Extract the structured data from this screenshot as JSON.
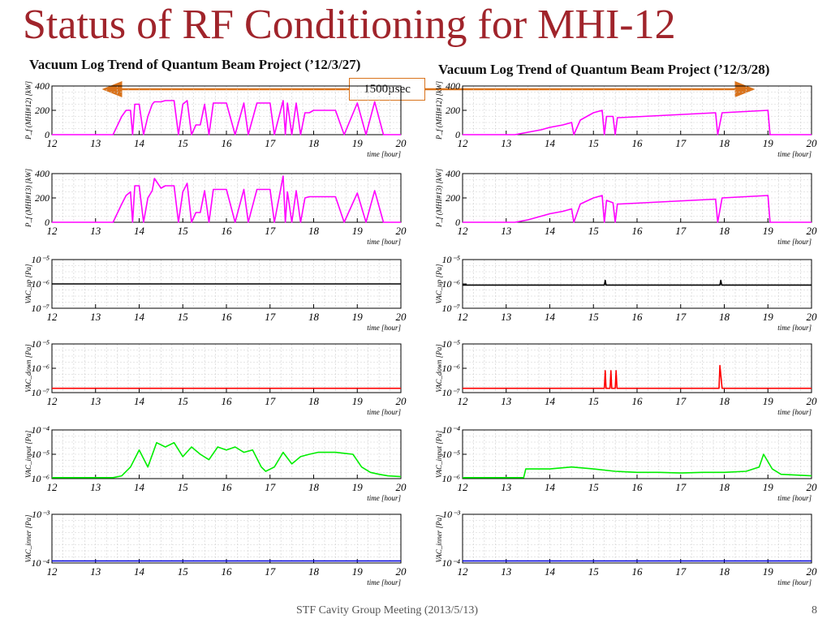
{
  "slide": {
    "title": "Status of RF Conditioning for MHI-12",
    "left_title": "Vacuum Log Trend of Quantum Beam Project (’12/3/27)",
    "right_title": "Vacuum Log Trend of Quantum Beam Project (’12/3/28)",
    "annotation": "1500µsec",
    "footer": "STF Cavity Group Meeting (2013/5/13)",
    "page_number": "8",
    "arrow_color": "#d9731c"
  },
  "chart_data": [
    {
      "type": "line",
      "column": "left",
      "row": 0,
      "ylabel": "P_f (MHI#12) [kW]",
      "xlabel": "time [hour]",
      "xlim": [
        12,
        20
      ],
      "ylim": [
        0,
        400
      ],
      "y_scale": "linear",
      "yticks": [
        {
          "value": 0,
          "label": "0"
        },
        {
          "value": 200,
          "label": "200"
        },
        {
          "value": 400,
          "label": "400"
        }
      ],
      "xticks": [
        "12",
        "13",
        "14",
        "15",
        "16",
        "17",
        "18",
        "19",
        "20"
      ],
      "grid": true,
      "color": "#ff00ff",
      "series": [
        {
          "x": [
            12,
            13.4,
            13.6,
            13.7,
            13.8,
            13.85,
            13.9,
            14.0,
            14.1,
            14.2,
            14.3,
            14.35,
            14.5,
            14.6,
            14.8,
            14.9,
            15.0,
            15.1,
            15.2,
            15.3,
            15.4,
            15.5,
            15.6,
            15.7,
            15.8,
            16.0,
            16.2,
            16.4,
            16.5,
            16.7,
            16.9,
            17.0,
            17.1,
            17.3,
            17.35,
            17.4,
            17.5,
            17.6,
            17.7,
            17.8,
            17.9,
            18.0,
            18.5,
            18.7,
            19.0,
            19.2,
            19.4,
            19.6,
            20
          ],
          "y": [
            0,
            0,
            150,
            200,
            200,
            0,
            250,
            250,
            0,
            150,
            250,
            270,
            270,
            280,
            280,
            0,
            250,
            280,
            0,
            80,
            80,
            250,
            0,
            260,
            260,
            260,
            0,
            260,
            0,
            260,
            260,
            260,
            0,
            280,
            0,
            260,
            0,
            260,
            0,
            180,
            180,
            200,
            200,
            0,
            260,
            0,
            270,
            0,
            0
          ]
        }
      ]
    },
    {
      "type": "line",
      "column": "left",
      "row": 1,
      "ylabel": "P_f (MHI#13) [kW]",
      "xlabel": "time [hour]",
      "xlim": [
        12,
        20
      ],
      "ylim": [
        0,
        400
      ],
      "y_scale": "linear",
      "yticks": [
        {
          "value": 0,
          "label": "0"
        },
        {
          "value": 200,
          "label": "200"
        },
        {
          "value": 400,
          "label": "400"
        }
      ],
      "xticks": [
        "12",
        "13",
        "14",
        "15",
        "16",
        "17",
        "18",
        "19",
        "20"
      ],
      "grid": true,
      "color": "#ff00ff",
      "series": [
        {
          "x": [
            12,
            13.4,
            13.6,
            13.7,
            13.8,
            13.85,
            13.9,
            14.0,
            14.1,
            14.2,
            14.3,
            14.35,
            14.5,
            14.6,
            14.8,
            14.9,
            15.0,
            15.1,
            15.2,
            15.3,
            15.4,
            15.5,
            15.6,
            15.7,
            15.8,
            16.0,
            16.2,
            16.4,
            16.5,
            16.7,
            16.9,
            17.0,
            17.1,
            17.3,
            17.35,
            17.4,
            17.5,
            17.6,
            17.7,
            17.8,
            17.9,
            18.0,
            18.5,
            18.7,
            19.0,
            19.2,
            19.4,
            19.6,
            20
          ],
          "y": [
            0,
            0,
            150,
            220,
            250,
            0,
            300,
            300,
            0,
            200,
            260,
            360,
            280,
            300,
            300,
            0,
            250,
            320,
            0,
            80,
            80,
            260,
            0,
            270,
            270,
            270,
            0,
            270,
            0,
            270,
            270,
            270,
            0,
            380,
            0,
            250,
            0,
            260,
            0,
            200,
            210,
            210,
            210,
            0,
            240,
            0,
            260,
            0,
            0
          ]
        }
      ]
    },
    {
      "type": "line",
      "column": "left",
      "row": 2,
      "ylabel": "VAC_up [Pa]",
      "xlabel": "time [hour]",
      "xlim": [
        12,
        20
      ],
      "ylim": [
        1e-07,
        1e-05
      ],
      "y_scale": "log",
      "yticks": [
        {
          "value": 1e-07,
          "label": "10⁻⁷"
        },
        {
          "value": 1e-06,
          "label": "10⁻⁶"
        },
        {
          "value": 1e-05,
          "label": "10⁻⁵"
        }
      ],
      "xticks": [
        "12",
        "13",
        "14",
        "15",
        "16",
        "17",
        "18",
        "19",
        "20"
      ],
      "grid": true,
      "color": "#000000",
      "series": [
        {
          "x": [
            12,
            20
          ],
          "y": [
            1e-06,
            1e-06
          ]
        }
      ]
    },
    {
      "type": "line",
      "column": "left",
      "row": 3,
      "ylabel": "VAC_down [Pa]",
      "xlabel": "time [hour]",
      "xlim": [
        12,
        20
      ],
      "ylim": [
        1e-07,
        1e-05
      ],
      "y_scale": "log",
      "yticks": [
        {
          "value": 1e-07,
          "label": "10⁻⁷"
        },
        {
          "value": 1e-06,
          "label": "10⁻⁶"
        },
        {
          "value": 1e-05,
          "label": "10⁻⁵"
        }
      ],
      "xticks": [
        "12",
        "13",
        "14",
        "15",
        "16",
        "17",
        "18",
        "19",
        "20"
      ],
      "grid": true,
      "color": "#ff0000",
      "series": [
        {
          "x": [
            12,
            20
          ],
          "y": [
            1.5e-07,
            1.5e-07
          ]
        }
      ]
    },
    {
      "type": "line",
      "column": "left",
      "row": 4,
      "ylabel": "VAC_input [Pa]",
      "xlabel": "time [hour]",
      "xlim": [
        12,
        20
      ],
      "ylim": [
        1e-06,
        0.0001
      ],
      "y_scale": "log",
      "yticks": [
        {
          "value": 1e-06,
          "label": "10⁻⁶"
        },
        {
          "value": 1e-05,
          "label": "10⁻⁵"
        },
        {
          "value": 0.0001,
          "label": "10⁻⁴"
        }
      ],
      "xticks": [
        "12",
        "13",
        "14",
        "15",
        "16",
        "17",
        "18",
        "19",
        "20"
      ],
      "grid": true,
      "color": "#00ee00",
      "series": [
        {
          "x": [
            12,
            13.4,
            13.6,
            13.8,
            14.0,
            14.2,
            14.4,
            14.6,
            14.8,
            15.0,
            15.2,
            15.4,
            15.6,
            15.8,
            16.0,
            16.2,
            16.4,
            16.6,
            16.8,
            16.9,
            17.1,
            17.3,
            17.5,
            17.7,
            17.9,
            18.1,
            18.3,
            18.5,
            18.7,
            18.9,
            19.1,
            19.3,
            19.5,
            19.7,
            20
          ],
          "y": [
            1.1e-06,
            1.1e-06,
            1.3e-06,
            3e-06,
            1.5e-05,
            3e-06,
            3e-05,
            2e-05,
            3e-05,
            8e-06,
            2e-05,
            1e-05,
            6e-06,
            2e-05,
            1.5e-05,
            2e-05,
            1.2e-05,
            1.5e-05,
            3e-06,
            2e-06,
            3e-06,
            1.2e-05,
            4e-06,
            8e-06,
            1e-05,
            1.2e-05,
            1.2e-05,
            1.2e-05,
            1.1e-05,
            1e-05,
            3e-06,
            1.8e-06,
            1.5e-06,
            1.3e-06,
            1.2e-06
          ]
        }
      ]
    },
    {
      "type": "line",
      "column": "left",
      "row": 5,
      "ylabel": "VAC_inner [Pa]",
      "xlabel": "time [hour]",
      "xlim": [
        12,
        20
      ],
      "ylim": [
        0.0001,
        0.001
      ],
      "y_scale": "log",
      "yticks": [
        {
          "value": 0.0001,
          "label": "10⁻⁴"
        },
        {
          "value": 0.001,
          "label": "10⁻³"
        }
      ],
      "xticks": [
        "12",
        "13",
        "14",
        "15",
        "16",
        "17",
        "18",
        "19",
        "20"
      ],
      "grid": true,
      "color": "#0000dd",
      "series": [
        {
          "x": [
            12,
            20
          ],
          "y": [
            0.00011,
            0.00011
          ]
        }
      ]
    },
    {
      "type": "line",
      "column": "right",
      "row": 0,
      "ylabel": "P_f (MHI#12) [kW]",
      "xlabel": "time [hour]",
      "xlim": [
        12,
        20
      ],
      "ylim": [
        0,
        400
      ],
      "y_scale": "linear",
      "yticks": [
        {
          "value": 0,
          "label": "0"
        },
        {
          "value": 200,
          "label": "200"
        },
        {
          "value": 400,
          "label": "400"
        }
      ],
      "xticks": [
        "12",
        "13",
        "14",
        "15",
        "16",
        "17",
        "18",
        "19",
        "20"
      ],
      "grid": true,
      "color": "#ff00ff",
      "series": [
        {
          "x": [
            12,
            13.2,
            13.5,
            13.8,
            14.0,
            14.3,
            14.5,
            14.55,
            14.7,
            15.0,
            15.2,
            15.25,
            15.3,
            15.45,
            15.5,
            15.55,
            15.6,
            17.8,
            17.85,
            17.95,
            19.0,
            19.05,
            20
          ],
          "y": [
            0,
            0,
            20,
            40,
            60,
            80,
            100,
            0,
            120,
            180,
            200,
            0,
            150,
            150,
            0,
            140,
            140,
            180,
            0,
            180,
            200,
            0,
            0
          ]
        }
      ]
    },
    {
      "type": "line",
      "column": "right",
      "row": 1,
      "ylabel": "P_f (MHI#13) [kW]",
      "xlabel": "time [hour]",
      "xlim": [
        12,
        20
      ],
      "ylim": [
        0,
        400
      ],
      "y_scale": "linear",
      "yticks": [
        {
          "value": 0,
          "label": "0"
        },
        {
          "value": 200,
          "label": "200"
        },
        {
          "value": 400,
          "label": "400"
        }
      ],
      "xticks": [
        "12",
        "13",
        "14",
        "15",
        "16",
        "17",
        "18",
        "19",
        "20"
      ],
      "grid": true,
      "color": "#ff00ff",
      "series": [
        {
          "x": [
            12,
            13.2,
            13.5,
            13.8,
            14.0,
            14.3,
            14.5,
            14.55,
            14.7,
            15.0,
            15.2,
            15.25,
            15.3,
            15.45,
            15.5,
            15.55,
            15.6,
            17.8,
            17.85,
            17.95,
            19.0,
            19.05,
            20
          ],
          "y": [
            0,
            0,
            20,
            50,
            70,
            90,
            110,
            0,
            150,
            200,
            220,
            0,
            180,
            160,
            0,
            150,
            150,
            190,
            0,
            200,
            220,
            0,
            0
          ]
        }
      ]
    },
    {
      "type": "line",
      "column": "right",
      "row": 2,
      "ylabel": "VAC_up [Pa]",
      "xlabel": "time [hour]",
      "xlim": [
        12,
        20
      ],
      "ylim": [
        1e-07,
        1e-05
      ],
      "y_scale": "log",
      "yticks": [
        {
          "value": 1e-07,
          "label": "10⁻⁷"
        },
        {
          "value": 1e-06,
          "label": "10⁻⁶"
        },
        {
          "value": 1e-05,
          "label": "10⁻⁵"
        }
      ],
      "xticks": [
        "12",
        "13",
        "14",
        "15",
        "16",
        "17",
        "18",
        "19",
        "20"
      ],
      "grid": true,
      "color": "#000000",
      "series": [
        {
          "x": [
            12,
            15.25,
            15.27,
            15.29,
            17.9,
            17.92,
            17.94,
            20
          ],
          "y": [
            9e-07,
            9e-07,
            1.4e-06,
            9e-07,
            9e-07,
            1.4e-06,
            9e-07,
            9e-07
          ]
        }
      ]
    },
    {
      "type": "line",
      "column": "right",
      "row": 3,
      "ylabel": "VAC_down [Pa]",
      "xlabel": "time [hour]",
      "xlim": [
        12,
        20
      ],
      "ylim": [
        1e-07,
        1e-05
      ],
      "y_scale": "log",
      "yticks": [
        {
          "value": 1e-07,
          "label": "10⁻⁷"
        },
        {
          "value": 1e-06,
          "label": "10⁻⁶"
        },
        {
          "value": 1e-05,
          "label": "10⁻⁵"
        }
      ],
      "xticks": [
        "12",
        "13",
        "14",
        "15",
        "16",
        "17",
        "18",
        "19",
        "20"
      ],
      "grid": true,
      "color": "#ff0000",
      "series": [
        {
          "x": [
            12,
            15.25,
            15.27,
            15.29,
            15.38,
            15.4,
            15.42,
            15.5,
            15.52,
            15.54,
            17.88,
            17.9,
            17.95,
            20
          ],
          "y": [
            1.5e-07,
            1.5e-07,
            8e-07,
            1.5e-07,
            1.5e-07,
            8e-07,
            1.5e-07,
            1.5e-07,
            8e-07,
            1.5e-07,
            1.5e-07,
            1.3e-06,
            1.5e-07,
            1.5e-07
          ]
        }
      ]
    },
    {
      "type": "line",
      "column": "right",
      "row": 4,
      "ylabel": "VAC_input [Pa]",
      "xlabel": "time [hour]",
      "xlim": [
        12,
        20
      ],
      "ylim": [
        1e-06,
        0.0001
      ],
      "y_scale": "log",
      "yticks": [
        {
          "value": 1e-06,
          "label": "10⁻⁶"
        },
        {
          "value": 1e-05,
          "label": "10⁻⁵"
        },
        {
          "value": 0.0001,
          "label": "10⁻⁴"
        }
      ],
      "xticks": [
        "12",
        "13",
        "14",
        "15",
        "16",
        "17",
        "18",
        "19",
        "20"
      ],
      "grid": true,
      "color": "#00ee00",
      "series": [
        {
          "x": [
            12,
            13.4,
            13.45,
            14.0,
            14.5,
            15.0,
            15.5,
            16.0,
            16.5,
            17.0,
            17.5,
            18.0,
            18.5,
            18.8,
            18.9,
            19.1,
            19.3,
            20
          ],
          "y": [
            1.1e-06,
            1.1e-06,
            2.5e-06,
            2.5e-06,
            3e-06,
            2.5e-06,
            2e-06,
            1.8e-06,
            1.8e-06,
            1.7e-06,
            1.8e-06,
            1.8e-06,
            2e-06,
            3e-06,
            1e-05,
            2.5e-06,
            1.5e-06,
            1.3e-06
          ]
        }
      ]
    },
    {
      "type": "line",
      "column": "right",
      "row": 5,
      "ylabel": "VAC_inner [Pa]",
      "xlabel": "time [hour]",
      "xlim": [
        12,
        20
      ],
      "ylim": [
        0.0001,
        0.001
      ],
      "y_scale": "log",
      "yticks": [
        {
          "value": 0.0001,
          "label": "10⁻⁴"
        },
        {
          "value": 0.001,
          "label": "10⁻³"
        }
      ],
      "xticks": [
        "12",
        "13",
        "14",
        "15",
        "16",
        "17",
        "18",
        "19",
        "20"
      ],
      "grid": true,
      "color": "#0000dd",
      "series": [
        {
          "x": [
            12,
            20
          ],
          "y": [
            0.00011,
            0.00011
          ]
        }
      ]
    }
  ]
}
